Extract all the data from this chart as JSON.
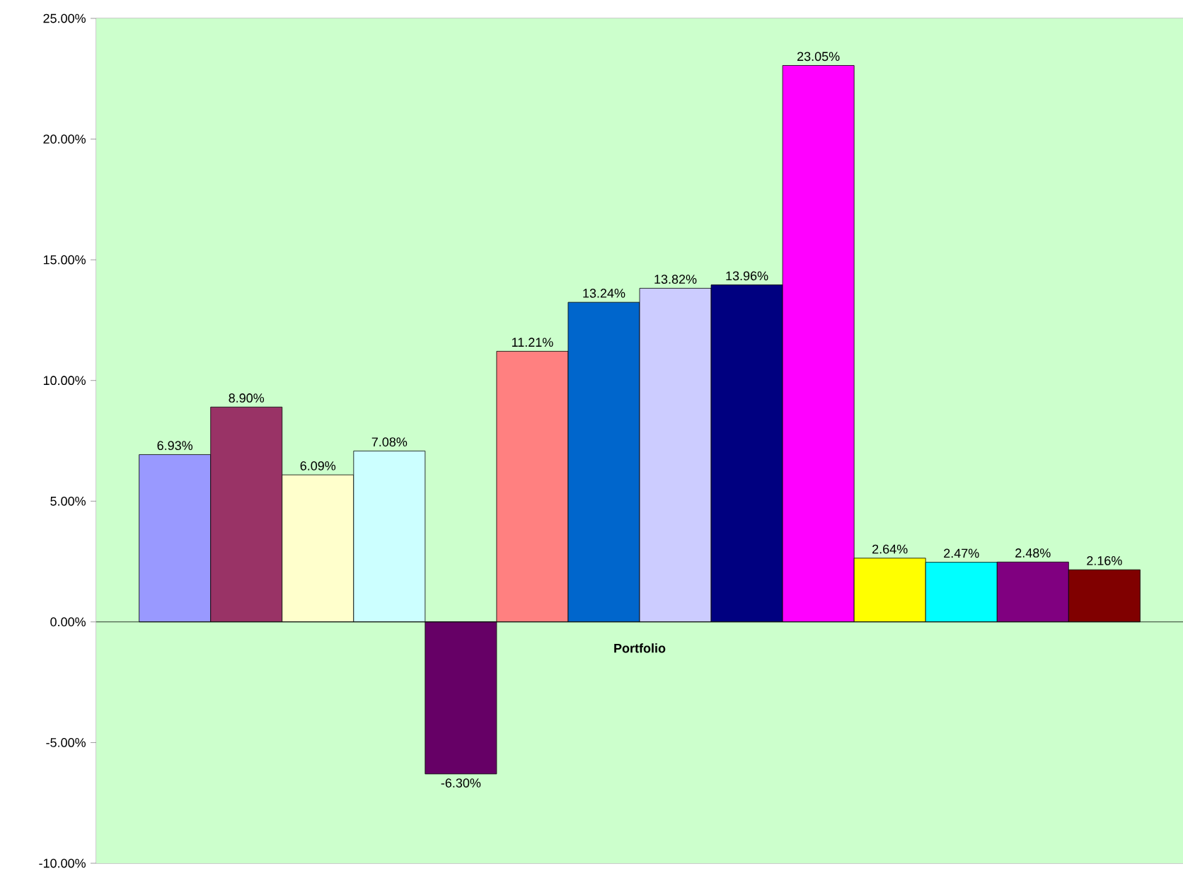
{
  "chart_data": {
    "type": "bar",
    "xlabel": "Portfolio",
    "categories": [
      null,
      null,
      null,
      null,
      null,
      null,
      null,
      null,
      null,
      null,
      null,
      null,
      null,
      null
    ],
    "values": [
      6.93,
      8.9,
      6.09,
      7.08,
      -6.3,
      11.21,
      13.24,
      13.82,
      13.96,
      23.05,
      2.64,
      2.47,
      2.48,
      2.16
    ],
    "value_labels": [
      "6.93%",
      "8.90%",
      "6.09%",
      "7.08%",
      "-6.30%",
      "11.21%",
      "13.24%",
      "13.82%",
      "13.96%",
      "23.05%",
      "2.64%",
      "2.47%",
      "2.48%",
      "2.16%"
    ],
    "colors": [
      "#9999ff",
      "#993366",
      "#ffffcc",
      "#ccffff",
      "#660066",
      "#ff8080",
      "#0066cc",
      "#ccccff",
      "#000080",
      "#ff00ff",
      "#ffff00",
      "#00ffff",
      "#800080",
      "#800000"
    ],
    "ylim": [
      -10,
      25
    ],
    "yticks": [
      {
        "value": -10,
        "label": "-10.00%"
      },
      {
        "value": -5,
        "label": "-5.00%"
      },
      {
        "value": 0,
        "label": "0.00%"
      },
      {
        "value": 5,
        "label": "5.00%"
      },
      {
        "value": 10,
        "label": "10.00%"
      },
      {
        "value": 15,
        "label": "15.00%"
      },
      {
        "value": 20,
        "label": "20.00%"
      },
      {
        "value": 25,
        "label": "25.00%"
      }
    ],
    "ref_lines": [
      {
        "axis": "y",
        "value": 0,
        "color": "#000000"
      }
    ]
  }
}
